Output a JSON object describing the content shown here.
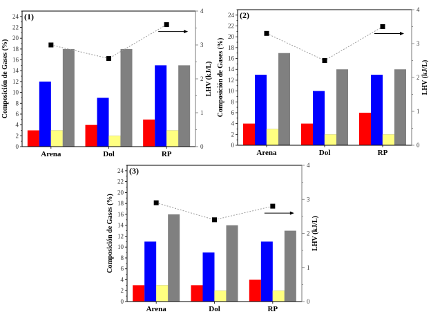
{
  "figure": {
    "colors": {
      "red": "#ff0000",
      "blue": "#0000ff",
      "yellow": "#ffff80",
      "gray": "#808080",
      "marker": "#000000",
      "line": "#999999"
    }
  },
  "chart_data": [
    {
      "type": "bar",
      "panel_label": "(1)",
      "categories": [
        "Arena",
        "Dol",
        "RP"
      ],
      "series": [
        {
          "name": "red",
          "color": "#ff0000",
          "values": [
            3,
            4,
            5
          ]
        },
        {
          "name": "blue",
          "color": "#0000ff",
          "values": [
            12,
            9,
            15
          ]
        },
        {
          "name": "yellow",
          "color": "#ffff80",
          "values": [
            3,
            2,
            3
          ]
        },
        {
          "name": "gray",
          "color": "#808080",
          "values": [
            18,
            18,
            15
          ]
        }
      ],
      "line_series": {
        "name": "LHV",
        "axis": "right",
        "values": [
          3.0,
          2.6,
          3.6
        ]
      },
      "ylabel": "Composición de Gases (%)",
      "ylabel_right": "LHV (kJ/L)",
      "ylim": [
        0,
        25
      ],
      "ylim_right": [
        0,
        4
      ],
      "yticks": [
        0,
        2,
        4,
        6,
        8,
        10,
        12,
        14,
        16,
        18,
        20,
        22,
        24
      ],
      "yticks_right": [
        0,
        1,
        2,
        3,
        4
      ],
      "arrow": "right",
      "grid": false
    },
    {
      "type": "bar",
      "panel_label": "(2)",
      "categories": [
        "Arena",
        "Dol",
        "RP"
      ],
      "series": [
        {
          "name": "red",
          "color": "#ff0000",
          "values": [
            4,
            4,
            6
          ]
        },
        {
          "name": "blue",
          "color": "#0000ff",
          "values": [
            13,
            10,
            13
          ]
        },
        {
          "name": "yellow",
          "color": "#ffff80",
          "values": [
            3,
            2,
            2
          ]
        },
        {
          "name": "gray",
          "color": "#808080",
          "values": [
            17,
            14,
            14
          ]
        }
      ],
      "line_series": {
        "name": "LHV",
        "axis": "right",
        "values": [
          3.3,
          2.5,
          3.5
        ]
      },
      "ylabel": "Composición de Gases (%)",
      "ylabel_right": "LHV (kJ/L)",
      "ylim": [
        0,
        25
      ],
      "ylim_right": [
        0,
        4
      ],
      "yticks": [
        0,
        2,
        4,
        6,
        8,
        10,
        12,
        14,
        16,
        18,
        20,
        22,
        24
      ],
      "yticks_right": [
        0,
        1,
        2,
        3,
        4
      ],
      "arrow": "right",
      "grid": false
    },
    {
      "type": "bar",
      "panel_label": "(3)",
      "categories": [
        "Arena",
        "Dol",
        "RP"
      ],
      "series": [
        {
          "name": "red",
          "color": "#ff0000",
          "values": [
            3,
            3,
            4
          ]
        },
        {
          "name": "blue",
          "color": "#0000ff",
          "values": [
            11,
            9,
            11
          ]
        },
        {
          "name": "yellow",
          "color": "#ffff80",
          "values": [
            3,
            2,
            2
          ]
        },
        {
          "name": "gray",
          "color": "#808080",
          "values": [
            16,
            14,
            13
          ]
        }
      ],
      "line_series": {
        "name": "LHV",
        "axis": "right",
        "values": [
          2.9,
          2.4,
          2.8
        ]
      },
      "ylabel": "Composición de Gases (%)",
      "ylabel_right": "LHV (kJ/L)",
      "ylim": [
        0,
        25
      ],
      "ylim_right": [
        0,
        4
      ],
      "yticks": [
        0,
        2,
        4,
        6,
        8,
        10,
        12,
        14,
        16,
        18,
        20,
        22,
        24
      ],
      "yticks_right": [
        0,
        1,
        2,
        3,
        4
      ],
      "arrow": "right",
      "grid": false
    }
  ]
}
